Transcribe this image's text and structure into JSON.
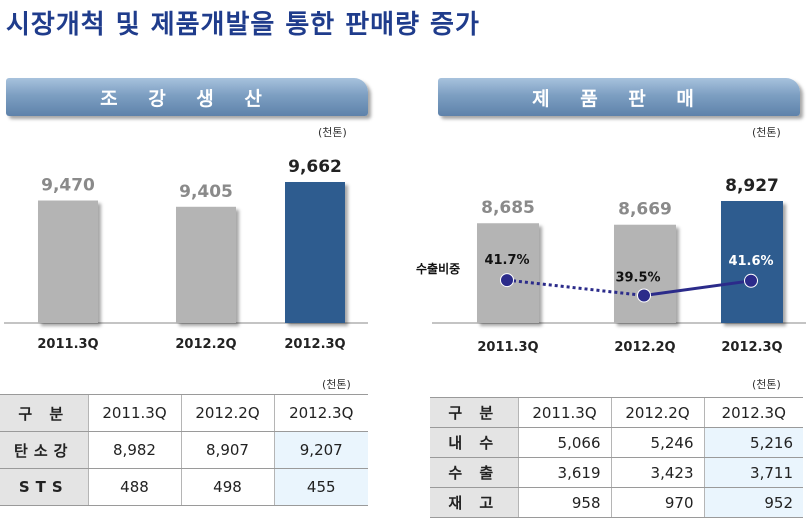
{
  "title": "시장개척 및 제품개발을 통한 판매량 증가",
  "unit": "(천톤)",
  "colors": {
    "gray_bar": "#b4b4b4",
    "blue_bar": "#2f5c8f",
    "dot_line": "#2b2b8a",
    "title": "#1f3c8c"
  },
  "chart_data": [
    {
      "type": "bar",
      "title": "조 강 생 산",
      "categories": [
        "2011.3Q",
        "2012.2Q",
        "2012.3Q"
      ],
      "values": [
        9470,
        9405,
        9662
      ],
      "value_labels": [
        "9,470",
        "9,405",
        "9,662"
      ],
      "highlight_index": 2,
      "unit": "(천톤)"
    },
    {
      "type": "bar",
      "title": "제 품 판 매",
      "categories": [
        "2011.3Q",
        "2012.2Q",
        "2012.3Q"
      ],
      "values": [
        8685,
        8669,
        8927
      ],
      "value_labels": [
        "8,685",
        "8,669",
        "8,927"
      ],
      "highlight_index": 2,
      "unit": "(천톤)",
      "overlay_line": {
        "name": "수출비중",
        "values": [
          41.7,
          39.5,
          41.6
        ],
        "labels": [
          "41.7%",
          "39.5%",
          "41.6%"
        ],
        "styles": [
          "dotted",
          "solid"
        ]
      }
    }
  ],
  "table_left": {
    "headers": [
      "구 분",
      "2011.3Q",
      "2012.2Q",
      "2012.3Q"
    ],
    "rows": [
      {
        "label": "탄소강",
        "values": [
          "8,982",
          "8,907",
          "9,207"
        ]
      },
      {
        "label": "STS",
        "values": [
          "488",
          "498",
          "455"
        ]
      }
    ]
  },
  "table_right": {
    "headers": [
      "구 분",
      "2011.3Q",
      "2012.2Q",
      "2012.3Q"
    ],
    "rows": [
      {
        "label": "내 수",
        "values": [
          "5,066",
          "5,246",
          "5,216"
        ]
      },
      {
        "label": "수 출",
        "values": [
          "3,619",
          "3,423",
          "3,711"
        ]
      },
      {
        "label": "재 고",
        "values": [
          "958",
          "970",
          "952"
        ]
      }
    ]
  }
}
